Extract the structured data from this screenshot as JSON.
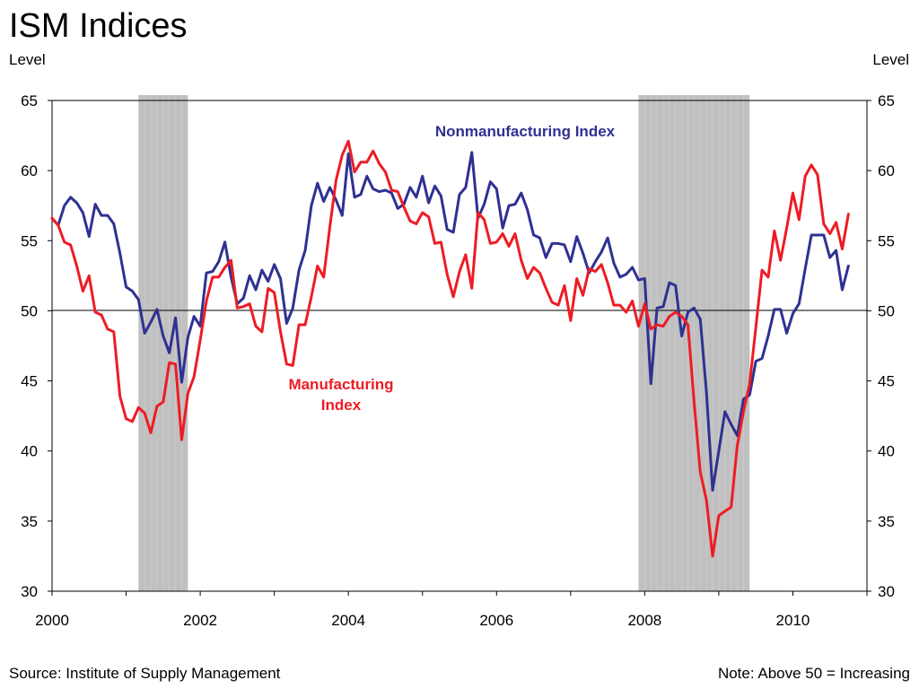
{
  "title": "ISM Indices",
  "left_axis_label": "Level",
  "right_axis_label": "Level",
  "source_note": "Source:  Institute of Supply Management",
  "right_note": "Note: Above 50 = Increasing",
  "chart_data": {
    "type": "line",
    "xlim": [
      "2000-01",
      "2010-12"
    ],
    "ylim": [
      30,
      65
    ],
    "y_ticks": [
      30,
      35,
      40,
      45,
      50,
      55,
      60,
      65
    ],
    "x_tick_labels": [
      "2000",
      "2002",
      "2004",
      "2006",
      "2008",
      "2010"
    ],
    "reference_line": 50,
    "recessions": [
      [
        "2001-03",
        "2001-11"
      ],
      [
        "2007-12",
        "2009-06"
      ]
    ],
    "recession_color": "#c0c0c0",
    "series": [
      {
        "name": "Nonmanufacturing Index",
        "color": "#2e3192",
        "start": "2000-01",
        "values": [
          56.6,
          56.1,
          57.5,
          58.1,
          57.7,
          57.0,
          55.3,
          57.6,
          56.8,
          56.8,
          56.2,
          54.1,
          51.7,
          51.4,
          50.8,
          48.4,
          49.2,
          50.1,
          48.2,
          47.0,
          49.5,
          44.9,
          48.1,
          49.6,
          48.9,
          52.7,
          52.8,
          53.5,
          54.9,
          52.4,
          50.5,
          50.9,
          52.5,
          51.5,
          52.9,
          52.1,
          53.3,
          52.3,
          49.1,
          50.2,
          52.9,
          54.3,
          57.5,
          59.1,
          57.8,
          58.8,
          57.9,
          56.8,
          61.2,
          58.1,
          58.3,
          59.6,
          58.7,
          58.5,
          58.6,
          58.4,
          57.3,
          57.6,
          58.8,
          58.1,
          59.6,
          57.7,
          58.9,
          58.2,
          55.8,
          55.6,
          58.3,
          58.8,
          61.3,
          56.6,
          57.6,
          59.2,
          58.7,
          55.9,
          57.5,
          57.6,
          58.4,
          57.2,
          55.4,
          55.2,
          53.8,
          54.8,
          54.8,
          54.7,
          53.5,
          55.3,
          54.1,
          52.7,
          53.5,
          54.2,
          55.2,
          53.4,
          52.4,
          52.6,
          53.1,
          52.2,
          52.3,
          44.8,
          50.2,
          50.3,
          52.0,
          51.8,
          48.2,
          49.9,
          50.2,
          49.4,
          44.2,
          37.2,
          40.0,
          42.8,
          41.9,
          41.1,
          43.7,
          44.0,
          46.4,
          46.6,
          48.2,
          50.1,
          50.1,
          48.4,
          49.8,
          50.5,
          53.0,
          55.4,
          55.4,
          55.4,
          53.8,
          54.3,
          51.5,
          53.2
        ]
      },
      {
        "name": "Manufacturing Index",
        "color": "#ee1c24",
        "start": "2000-01",
        "values": [
          56.6,
          56.1,
          54.9,
          54.7,
          53.2,
          51.4,
          52.5,
          49.9,
          49.7,
          48.7,
          48.5,
          43.9,
          42.3,
          42.1,
          43.1,
          42.7,
          41.3,
          43.2,
          43.5,
          46.3,
          46.2,
          40.8,
          44.1,
          45.3,
          47.9,
          50.7,
          52.4,
          52.4,
          53.1,
          53.6,
          50.2,
          50.3,
          50.5,
          48.9,
          48.5,
          51.6,
          51.3,
          48.5,
          46.2,
          46.1,
          49.0,
          49.0,
          51.0,
          53.2,
          52.4,
          56.0,
          59.3,
          61.1,
          62.1,
          59.9,
          60.6,
          60.6,
          61.4,
          60.5,
          59.9,
          58.6,
          58.5,
          57.4,
          56.4,
          56.2,
          57.0,
          56.7,
          54.8,
          54.9,
          52.6,
          51.0,
          52.8,
          54.0,
          51.6,
          57.0,
          56.5,
          54.8,
          54.9,
          55.5,
          54.6,
          55.5,
          53.6,
          52.3,
          53.1,
          52.7,
          51.6,
          50.6,
          50.4,
          51.8,
          49.3,
          52.3,
          51.1,
          53.0,
          52.8,
          53.3,
          52.0,
          50.4,
          50.4,
          49.9,
          50.7,
          48.9,
          50.5,
          48.7,
          49.0,
          48.9,
          49.6,
          49.9,
          49.6,
          49.0,
          43.5,
          38.5,
          36.5,
          32.5,
          35.4,
          35.7,
          36.0,
          40.4,
          42.8,
          44.8,
          48.8,
          52.9,
          52.4,
          55.7,
          53.6,
          55.9,
          58.4,
          56.5,
          59.6,
          60.4,
          59.7,
          56.2,
          55.5,
          56.3,
          54.4,
          56.9
        ]
      }
    ],
    "annotations": [
      {
        "text": "Nonmanufacturing Index",
        "color": "#2e3192"
      },
      {
        "text": "Manufacturing",
        "text2": "Index",
        "color": "#ee1c24"
      }
    ]
  }
}
